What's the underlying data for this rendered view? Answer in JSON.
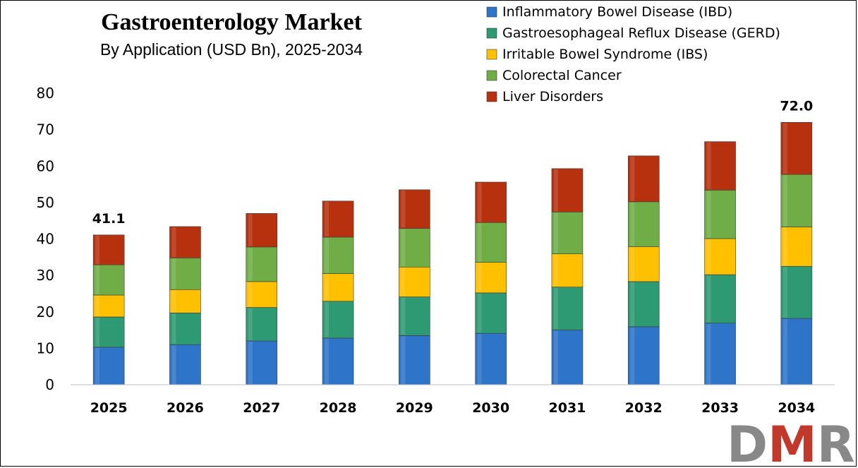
{
  "chart_data": {
    "type": "bar",
    "stacked": true,
    "title": "Gastroenterology Market",
    "subtitle": "By Application (USD Bn), 2025-2034",
    "xlabel": "",
    "ylabel": "",
    "ylim": [
      0,
      80
    ],
    "yticks": [
      0,
      10,
      20,
      30,
      40,
      50,
      60,
      70,
      80
    ],
    "grid": false,
    "legend_position": "top-right",
    "categories": [
      "2025",
      "2026",
      "2027",
      "2028",
      "2029",
      "2030",
      "2031",
      "2032",
      "2033",
      "2034"
    ],
    "series": [
      {
        "name": "Inflammatory Bowel Disease (IBD)",
        "color": "#2E75C9",
        "values": [
          10.3,
          11.0,
          12.0,
          12.8,
          13.5,
          14.1,
          15.0,
          15.9,
          16.9,
          18.2
        ]
      },
      {
        "name": "Gastroesophageal Reflux Disease (GERD)",
        "color": "#2E9A74",
        "values": [
          8.3,
          8.7,
          9.2,
          10.1,
          10.6,
          11.1,
          11.8,
          12.4,
          13.3,
          14.3
        ]
      },
      {
        "name": "Irritable Bowel Syndrome (IBS)",
        "color": "#FFC000",
        "values": [
          6.0,
          6.4,
          7.1,
          7.6,
          8.2,
          8.4,
          9.1,
          9.6,
          9.9,
          10.8
        ]
      },
      {
        "name": "Colorectal Cancer",
        "color": "#70AD47",
        "values": [
          8.3,
          8.7,
          9.5,
          10.0,
          10.6,
          10.9,
          11.5,
          12.3,
          13.3,
          14.4
        ]
      },
      {
        "name": "Liver Disorders",
        "color": "#B7310F",
        "values": [
          8.2,
          8.6,
          9.2,
          9.9,
          10.6,
          11.1,
          11.9,
          12.6,
          13.3,
          14.3
        ]
      }
    ],
    "totals_labels": [
      {
        "category": "2025",
        "text": "41.1"
      },
      {
        "category": "2034",
        "text": "72.0"
      }
    ]
  },
  "logo": {
    "text": "DMR",
    "colors": {
      "D": "#888888",
      "M": "#C0392B",
      "R": "#888888"
    }
  }
}
